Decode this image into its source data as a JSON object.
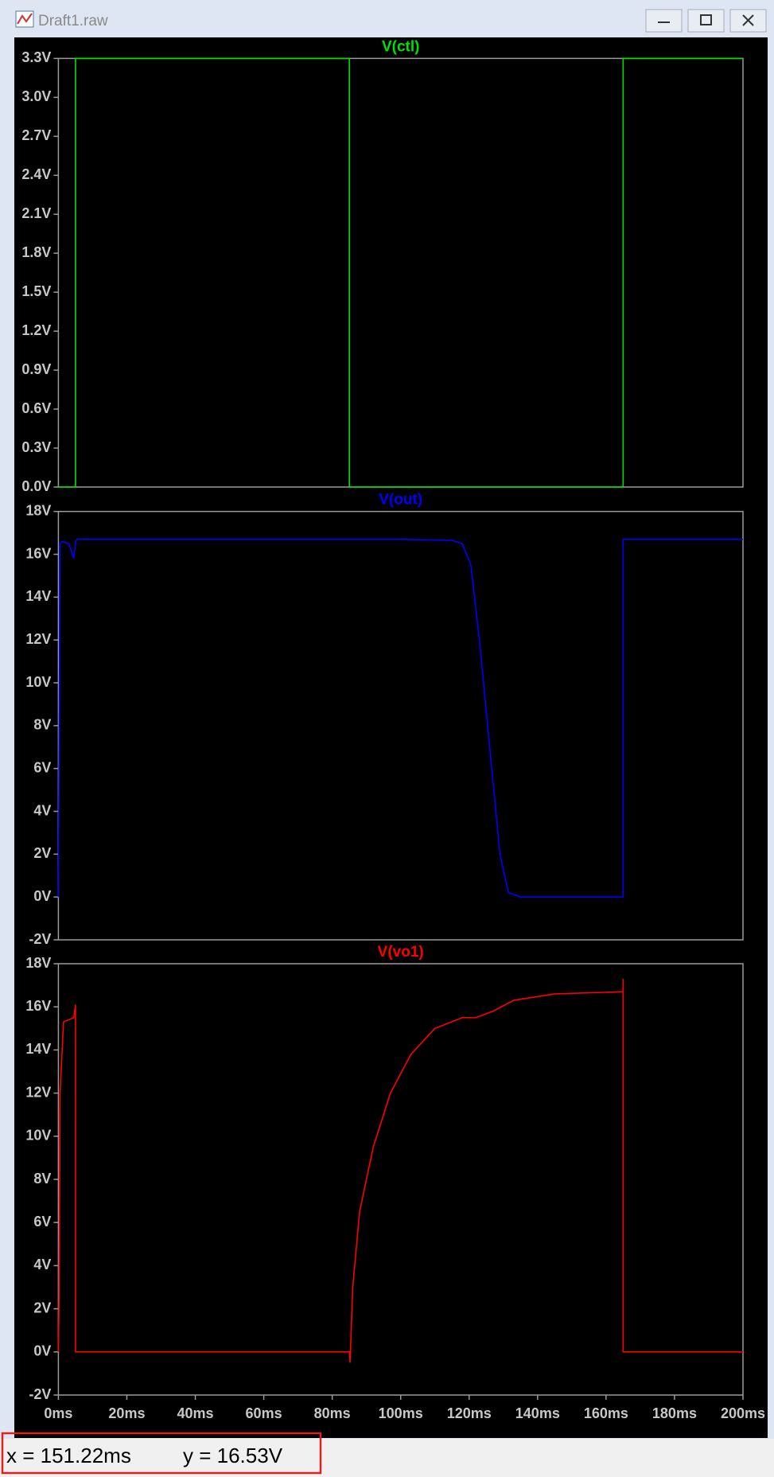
{
  "window": {
    "title": "Draft1.raw"
  },
  "chart_data": [
    {
      "type": "line",
      "xlim": [
        0,
        200
      ],
      "ylim": [
        0,
        3.3
      ],
      "yticks": [
        {
          "value": 0,
          "label": "0.0V"
        },
        {
          "value": 0.3,
          "label": "0.3V"
        },
        {
          "value": 0.6,
          "label": "0.6V"
        },
        {
          "value": 0.9,
          "label": "0.9V"
        },
        {
          "value": 1.2,
          "label": "1.2V"
        },
        {
          "value": 1.5,
          "label": "1.5V"
        },
        {
          "value": 1.8,
          "label": "1.8V"
        },
        {
          "value": 2.1,
          "label": "2.1V"
        },
        {
          "value": 2.4,
          "label": "2.4V"
        },
        {
          "value": 2.7,
          "label": "2.7V"
        },
        {
          "value": 3.0,
          "label": "3.0V"
        },
        {
          "value": 3.3,
          "label": "3.3V"
        }
      ],
      "x": [
        0,
        5,
        5,
        85,
        85,
        165,
        165,
        200
      ],
      "series": [
        {
          "name": "V(ctl)",
          "color": "#00e000",
          "values": [
            0,
            0,
            3.3,
            3.3,
            0,
            0,
            3.3,
            3.3
          ]
        }
      ]
    },
    {
      "type": "line",
      "xlim": [
        0,
        200
      ],
      "ylim": [
        -2,
        18
      ],
      "yticks": [
        {
          "value": -2,
          "label": "-2V"
        },
        {
          "value": 0,
          "label": "0V"
        },
        {
          "value": 2,
          "label": "2V"
        },
        {
          "value": 4,
          "label": "4V"
        },
        {
          "value": 6,
          "label": "6V"
        },
        {
          "value": 8,
          "label": "8V"
        },
        {
          "value": 10,
          "label": "10V"
        },
        {
          "value": 12,
          "label": "12V"
        },
        {
          "value": 14,
          "label": "14V"
        },
        {
          "value": 16,
          "label": "16V"
        },
        {
          "value": 18,
          "label": "18V"
        }
      ],
      "x": [
        0,
        0.5,
        1,
        3,
        4.5,
        5,
        5.5,
        60,
        100,
        115,
        118,
        120.5,
        123,
        126,
        129,
        131.5,
        135,
        165,
        165,
        200
      ],
      "series": [
        {
          "name": "V(out)",
          "color": "#0000ff",
          "values": [
            0,
            16.5,
            16.6,
            16.5,
            15.8,
            16.6,
            16.7,
            16.7,
            16.7,
            16.65,
            16.5,
            15.5,
            12,
            7,
            2,
            0.2,
            0,
            0,
            16.7,
            16.7
          ]
        }
      ]
    },
    {
      "type": "line",
      "xlim": [
        0,
        200
      ],
      "ylim": [
        -2,
        18
      ],
      "yticks": [
        {
          "value": -2,
          "label": "-2V"
        },
        {
          "value": 0,
          "label": "0V"
        },
        {
          "value": 2,
          "label": "2V"
        },
        {
          "value": 4,
          "label": "4V"
        },
        {
          "value": 6,
          "label": "6V"
        },
        {
          "value": 8,
          "label": "8V"
        },
        {
          "value": 10,
          "label": "10V"
        },
        {
          "value": 12,
          "label": "12V"
        },
        {
          "value": 14,
          "label": "14V"
        },
        {
          "value": 16,
          "label": "16V"
        },
        {
          "value": 18,
          "label": "18V"
        }
      ],
      "xticks": [
        {
          "value": 0,
          "label": "0ms"
        },
        {
          "value": 20,
          "label": "20ms"
        },
        {
          "value": 40,
          "label": "40ms"
        },
        {
          "value": 60,
          "label": "60ms"
        },
        {
          "value": 80,
          "label": "80ms"
        },
        {
          "value": 100,
          "label": "100ms"
        },
        {
          "value": 120,
          "label": "120ms"
        },
        {
          "value": 140,
          "label": "140ms"
        },
        {
          "value": 160,
          "label": "160ms"
        },
        {
          "value": 180,
          "label": "180ms"
        },
        {
          "value": 200,
          "label": "200ms"
        }
      ],
      "x": [
        0,
        0.2,
        0.5,
        1.5,
        4.5,
        5,
        5,
        85,
        85.2,
        86,
        88,
        92,
        97,
        103,
        110,
        118,
        122,
        127,
        133,
        145,
        165,
        165,
        165,
        200
      ],
      "series": [
        {
          "name": "V(vo1)",
          "color": "#ff0000",
          "values": [
            0,
            2.5,
            12,
            15.3,
            15.5,
            16.1,
            0,
            0,
            -0.5,
            3,
            6.5,
            9.5,
            12,
            13.8,
            15,
            15.5,
            15.5,
            15.8,
            16.3,
            16.6,
            16.7,
            17.3,
            0,
            0
          ]
        }
      ]
    }
  ],
  "status": {
    "x": "x = 151.22ms",
    "y": "y = 16.53V"
  }
}
